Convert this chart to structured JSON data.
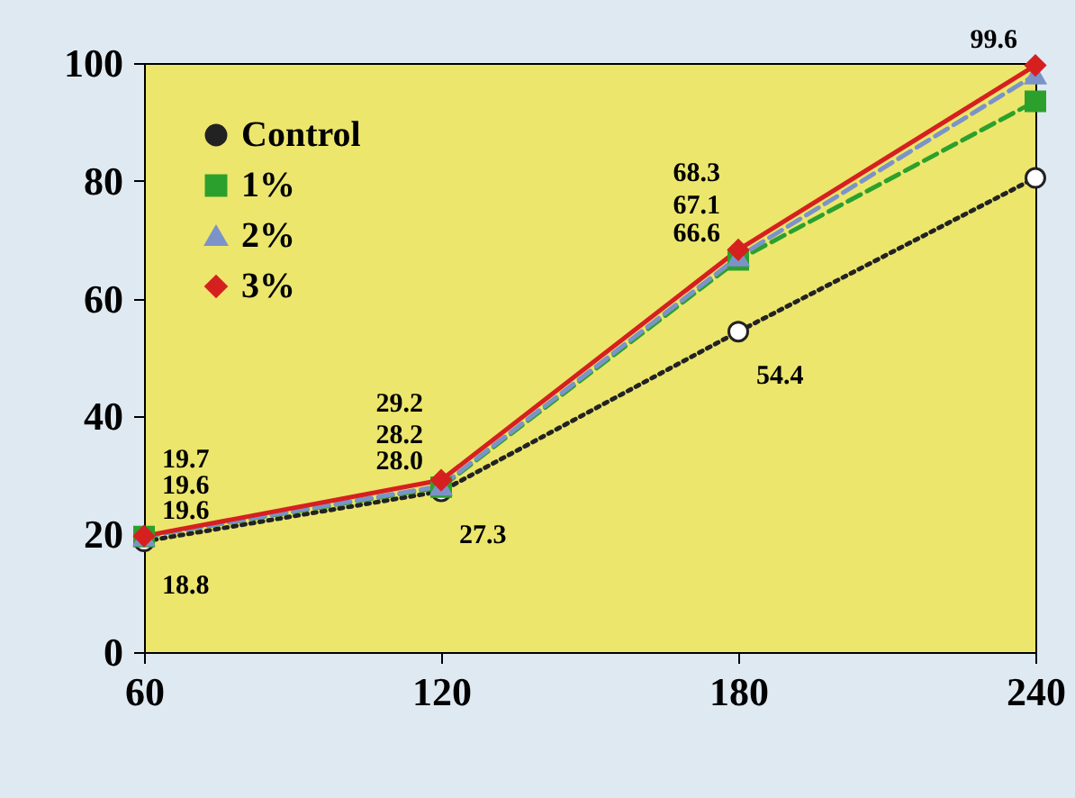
{
  "chart_data": {
    "type": "line",
    "x": [
      60,
      120,
      180,
      240
    ],
    "series": [
      {
        "name": "Control",
        "color": "#222222",
        "line_style": "dotted",
        "marker": "circle",
        "values": [
          18.8,
          27.3,
          54.4,
          80.5
        ],
        "value_labels": [
          "18.8",
          "27.3",
          "54.4",
          null
        ]
      },
      {
        "name": "1%",
        "color": "#2ca02c",
        "line_style": "dashed",
        "marker": "square",
        "values": [
          19.6,
          28.0,
          66.6,
          93.5
        ],
        "value_labels": [
          "19.6",
          "28.0",
          "66.6",
          null
        ]
      },
      {
        "name": "2%",
        "color": "#7b93c9",
        "line_style": "dashed",
        "marker": "triangle",
        "values": [
          19.6,
          28.2,
          67.1,
          98.0
        ],
        "value_labels": [
          "19.6",
          "28.2",
          "67.1",
          null
        ]
      },
      {
        "name": "3%",
        "color": "#d62020",
        "line_style": "solid",
        "marker": "diamond",
        "values": [
          19.7,
          29.2,
          68.3,
          99.6
        ],
        "value_labels": [
          "19.7",
          "29.2",
          "68.3",
          "99.6"
        ]
      }
    ],
    "xlim": [
      60,
      240
    ],
    "xticks": [
      60,
      120,
      180,
      240
    ],
    "ylim": [
      0,
      100
    ],
    "yticks": [
      0,
      20,
      40,
      60,
      80,
      100
    ],
    "grid": false,
    "legend": "top left"
  }
}
